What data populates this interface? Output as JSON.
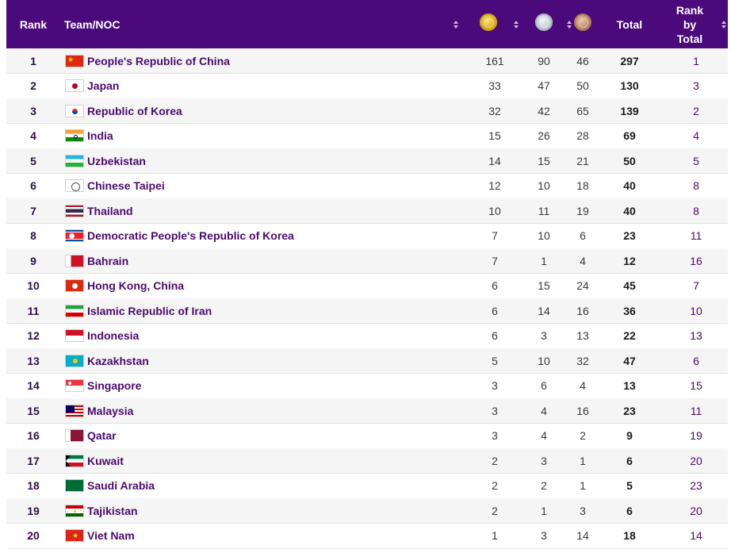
{
  "header": {
    "rank": "Rank",
    "team": "Team/NOC",
    "total": "Total",
    "rank_by_total_1": "Rank",
    "rank_by_total_2": "by",
    "rank_by_total_3": "Total"
  },
  "medal_icons": [
    "gold-medal-icon",
    "silver-medal-icon",
    "bronze-medal-icon"
  ],
  "colors": {
    "header_bg": "#4b0a7c",
    "team_text": "#4b0a6e"
  },
  "rows": [
    {
      "rank": "1",
      "team": "People's Republic of China",
      "gold": "161",
      "silver": "90",
      "bronze": "46",
      "total": "297",
      "rank_total": "1"
    },
    {
      "rank": "2",
      "team": "Japan",
      "gold": "33",
      "silver": "47",
      "bronze": "50",
      "total": "130",
      "rank_total": "3"
    },
    {
      "rank": "3",
      "team": "Republic of Korea",
      "gold": "32",
      "silver": "42",
      "bronze": "65",
      "total": "139",
      "rank_total": "2"
    },
    {
      "rank": "4",
      "team": "India",
      "gold": "15",
      "silver": "26",
      "bronze": "28",
      "total": "69",
      "rank_total": "4"
    },
    {
      "rank": "5",
      "team": "Uzbekistan",
      "gold": "14",
      "silver": "15",
      "bronze": "21",
      "total": "50",
      "rank_total": "5"
    },
    {
      "rank": "6",
      "team": "Chinese Taipei",
      "gold": "12",
      "silver": "10",
      "bronze": "18",
      "total": "40",
      "rank_total": "8"
    },
    {
      "rank": "7",
      "team": "Thailand",
      "gold": "10",
      "silver": "11",
      "bronze": "19",
      "total": "40",
      "rank_total": "8"
    },
    {
      "rank": "8",
      "team": "Democratic People's Republic of Korea",
      "gold": "7",
      "silver": "10",
      "bronze": "6",
      "total": "23",
      "rank_total": "11"
    },
    {
      "rank": "9",
      "team": "Bahrain",
      "gold": "7",
      "silver": "1",
      "bronze": "4",
      "total": "12",
      "rank_total": "16"
    },
    {
      "rank": "10",
      "team": "Hong Kong, China",
      "gold": "6",
      "silver": "15",
      "bronze": "24",
      "total": "45",
      "rank_total": "7"
    },
    {
      "rank": "11",
      "team": "Islamic Republic of Iran",
      "gold": "6",
      "silver": "14",
      "bronze": "16",
      "total": "36",
      "rank_total": "10"
    },
    {
      "rank": "12",
      "team": "Indonesia",
      "gold": "6",
      "silver": "3",
      "bronze": "13",
      "total": "22",
      "rank_total": "13"
    },
    {
      "rank": "13",
      "team": "Kazakhstan",
      "gold": "5",
      "silver": "10",
      "bronze": "32",
      "total": "47",
      "rank_total": "6"
    },
    {
      "rank": "14",
      "team": "Singapore",
      "gold": "3",
      "silver": "6",
      "bronze": "4",
      "total": "13",
      "rank_total": "15"
    },
    {
      "rank": "15",
      "team": "Malaysia",
      "gold": "3",
      "silver": "4",
      "bronze": "16",
      "total": "23",
      "rank_total": "11"
    },
    {
      "rank": "16",
      "team": "Qatar",
      "gold": "3",
      "silver": "4",
      "bronze": "2",
      "total": "9",
      "rank_total": "19"
    },
    {
      "rank": "17",
      "team": "Kuwait",
      "gold": "2",
      "silver": "3",
      "bronze": "1",
      "total": "6",
      "rank_total": "20"
    },
    {
      "rank": "18",
      "team": "Saudi Arabia",
      "gold": "2",
      "silver": "2",
      "bronze": "1",
      "total": "5",
      "rank_total": "23"
    },
    {
      "rank": "19",
      "team": "Tajikistan",
      "gold": "2",
      "silver": "1",
      "bronze": "3",
      "total": "6",
      "rank_total": "20"
    },
    {
      "rank": "20",
      "team": "Viet Nam",
      "gold": "1",
      "silver": "3",
      "bronze": "14",
      "total": "18",
      "rank_total": "14"
    }
  ]
}
